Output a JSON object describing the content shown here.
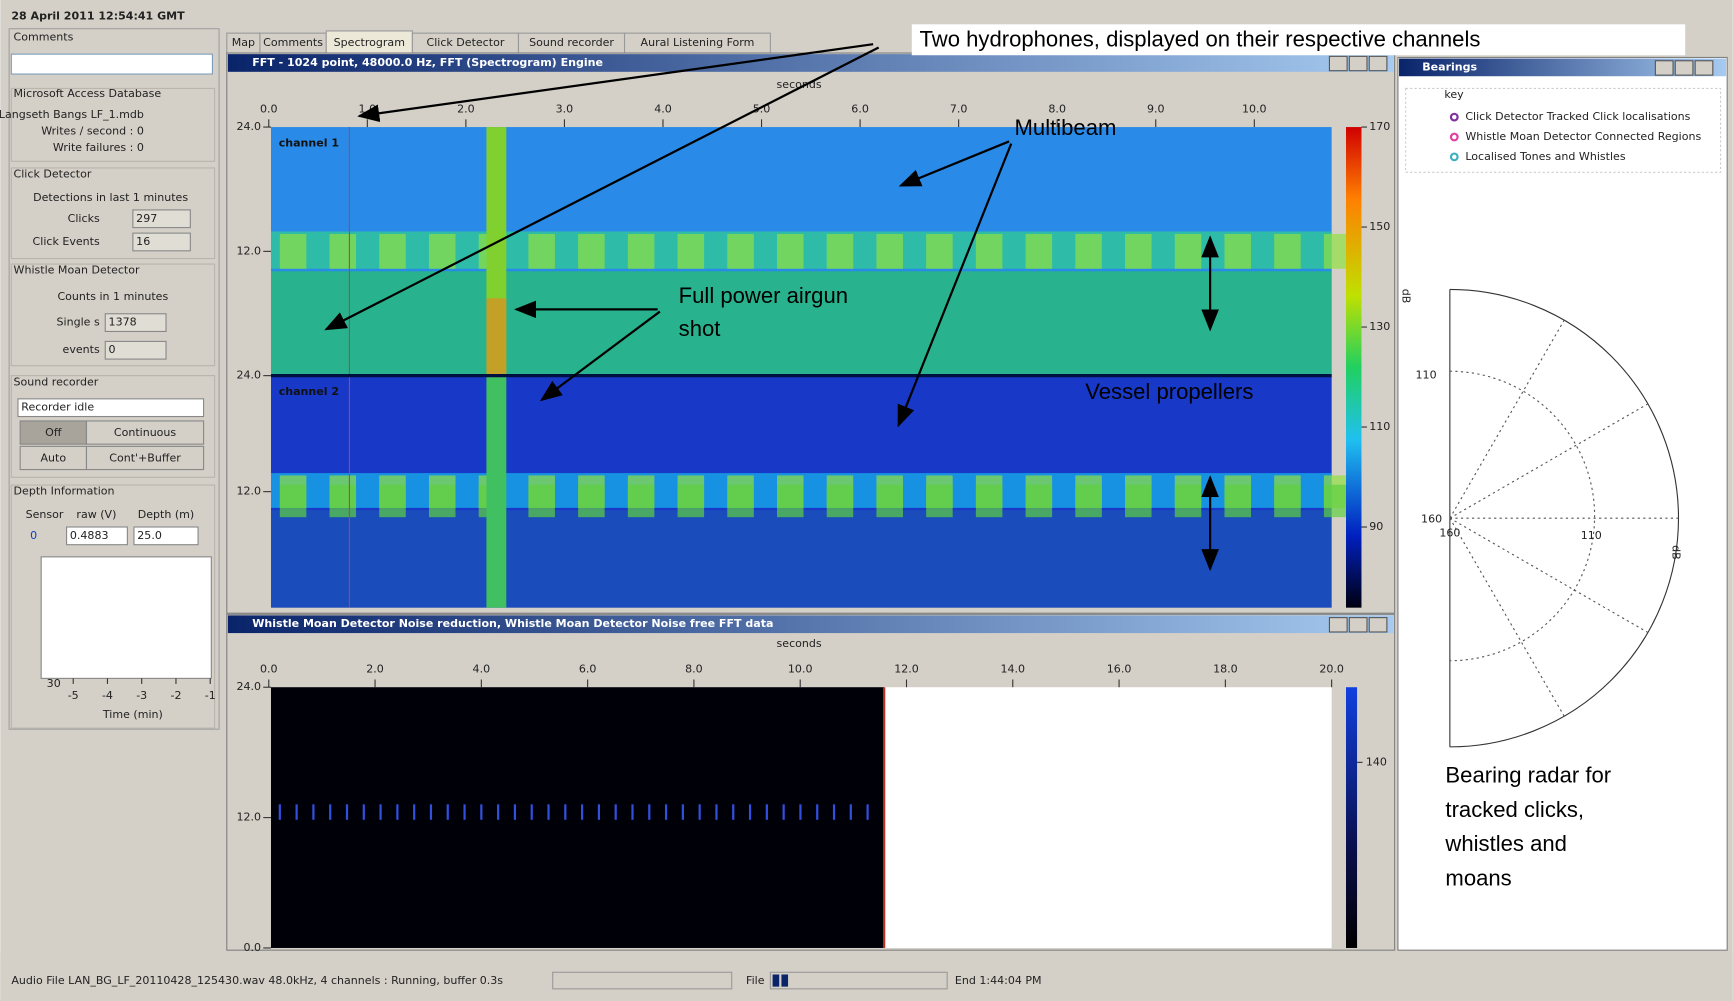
{
  "header": {
    "timestamp": "28 April 2011 12:54:41 GMT"
  },
  "sidebar": {
    "comments": {
      "title": "Comments"
    },
    "database": {
      "title": "Microsoft Access Database",
      "file": "Langseth Bangs LF_1.mdb",
      "writes": "Writes / second : 0",
      "failures": "Write failures : 0"
    },
    "click_detector": {
      "title": "Click Detector",
      "detections": "Detections in last 1 minutes",
      "clicks_label": "Clicks",
      "clicks_value": "297",
      "events_label": "Click Events",
      "events_value": "16"
    },
    "whistle_detector": {
      "title": "Whistle Moan Detector",
      "counts": "Counts in 1 minutes",
      "singles_label": "Single s",
      "singles_value": "1378",
      "events_label": "events",
      "events_value": "0"
    },
    "sound_recorder": {
      "title": "Sound recorder",
      "status": "Recorder idle",
      "buttons": [
        "Off",
        "Continuous",
        "Auto",
        "Cont'+Buffer"
      ]
    },
    "depth": {
      "title": "Depth Information",
      "headers": [
        "Sensor",
        "raw (V)",
        "Depth (m)"
      ],
      "row": [
        "0",
        "0.4883",
        "25.0"
      ],
      "plot_ytick": "30",
      "plot_xticks": [
        "-5",
        "-4",
        "-3",
        "-2",
        "-1"
      ],
      "plot_xlabel": "Time (min)"
    }
  },
  "tabs": [
    "Map",
    "Comments",
    "Spectrogram",
    "Click Detector",
    "Sound recorder",
    "Aural Listening Form"
  ],
  "spectrogram": {
    "title": "FFT - 1024 point, 48000.0 Hz, FFT (Spectrogram) Engine",
    "xlabel": "seconds",
    "xticks": [
      "0.0",
      "1.0",
      "2.0",
      "3.0",
      "4.0",
      "5.0",
      "6.0",
      "7.0",
      "8.0",
      "9.0",
      "10.0"
    ],
    "channels": [
      {
        "label": "channel 1",
        "yticks": [
          "24.0",
          "12.0"
        ]
      },
      {
        "label": "channel 2",
        "yticks": [
          "24.0",
          "12.0"
        ]
      }
    ],
    "colorbar_ticks": [
      "170",
      "150",
      "130",
      "110",
      "90"
    ]
  },
  "noise": {
    "title": "Whistle Moan Detector Noise reduction, Whistle Moan Detector Noise free FFT data",
    "xlabel": "seconds",
    "xticks": [
      "0.0",
      "2.0",
      "4.0",
      "6.0",
      "8.0",
      "10.0",
      "12.0",
      "14.0",
      "16.0",
      "18.0",
      "20.0"
    ],
    "yticks": [
      "24.0",
      "12.0",
      "0.0"
    ],
    "colorbar_ticks": [
      "140"
    ]
  },
  "bearings": {
    "title": "Bearings",
    "key_title": "key",
    "key": [
      {
        "label": "Click Detector Tracked Click localisations",
        "color": "#8030a0"
      },
      {
        "label": "Whistle Moan Detector Connected Regions",
        "color": "#e040a0"
      },
      {
        "label": "Localised Tones and Whistles",
        "color": "#40b0c0"
      }
    ],
    "radar_left_ticks": [
      "110",
      "160"
    ],
    "radar_bottom_ticks": [
      "160",
      "110"
    ],
    "axis_labels": [
      "dB",
      "dB"
    ]
  },
  "status_bar": {
    "audio": "Audio File LAN_BG_LF_20110428_125430.wav 48.0kHz, 4 channels : Running, buffer 0.3s",
    "file": "File",
    "end": "End 1:44:04 PM"
  },
  "annotations": {
    "hydrophones": "Two hydrophones, displayed on their respective channels",
    "multibeam": "Multibeam",
    "airgun": [
      "Full power airgun",
      "shot"
    ],
    "propellers": "Vessel propellers",
    "radar": [
      "Bearing radar for",
      "tracked clicks,",
      "whistles and",
      "moans"
    ]
  }
}
